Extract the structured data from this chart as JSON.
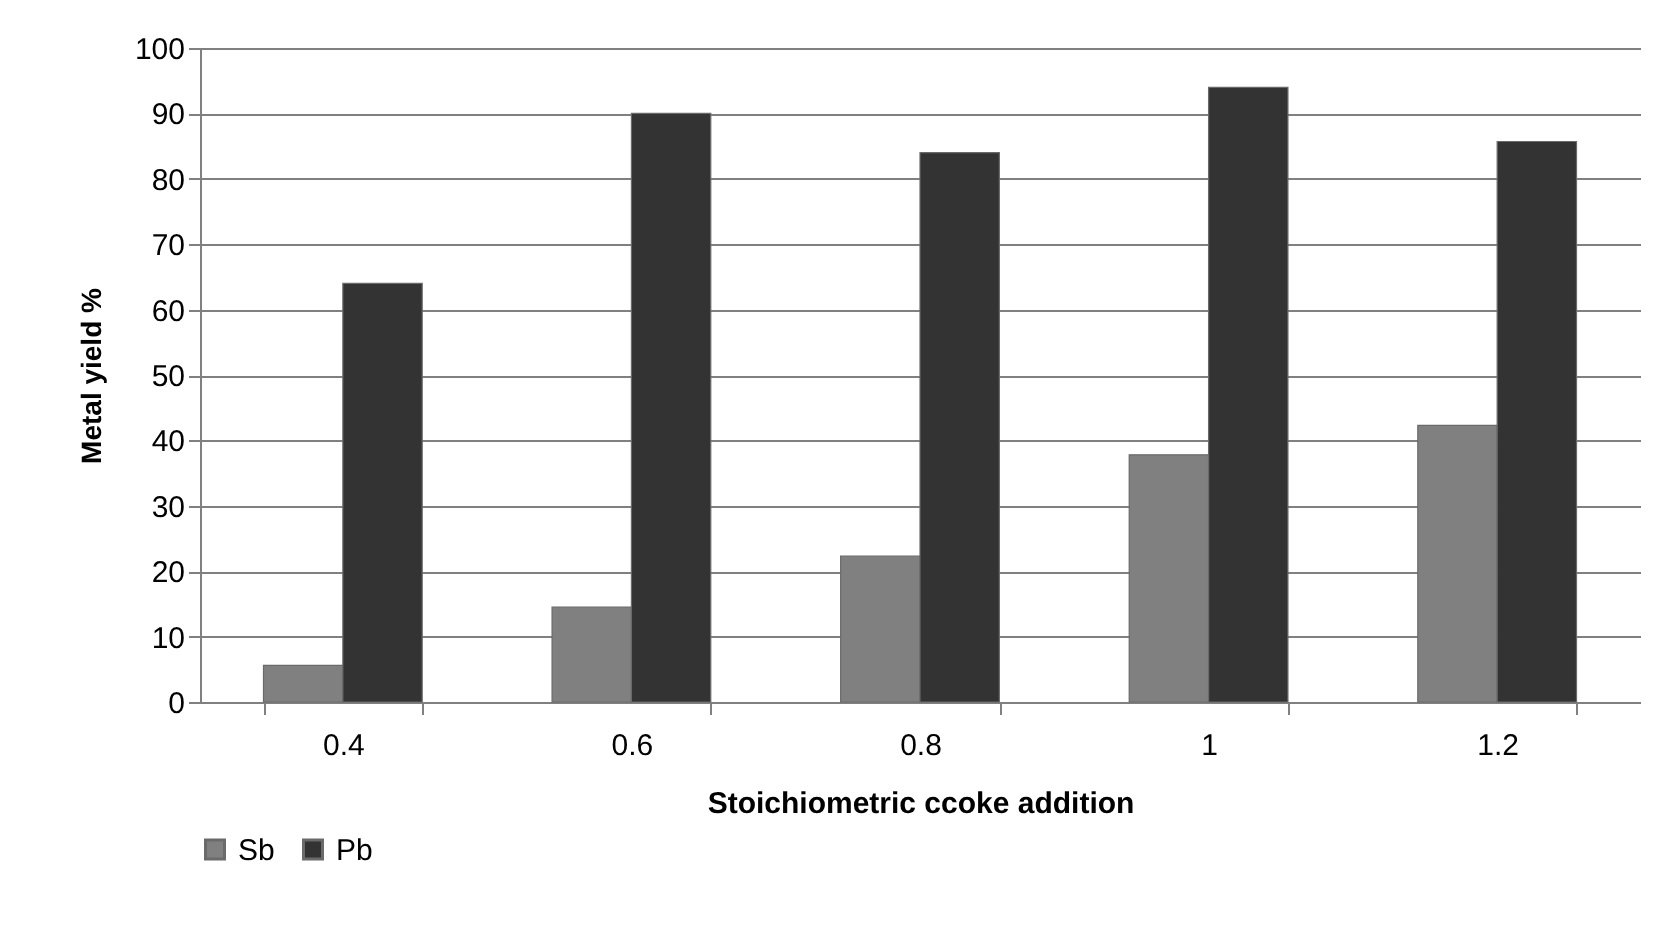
{
  "chart_data": {
    "type": "bar",
    "xlabel": "Stoichiometric ccoke addition",
    "ylabel": "Metal yield %",
    "categories": [
      "0.4",
      "0.6",
      "0.8",
      "1",
      "1.2"
    ],
    "series": [
      {
        "name": "Sb",
        "color": "#808080",
        "values": [
          5.6,
          14.5,
          22.3,
          37.8,
          42.3
        ]
      },
      {
        "name": "Pb",
        "color": "#333333",
        "values": [
          64,
          90,
          84,
          94,
          85.7
        ]
      }
    ],
    "ylim": [
      0,
      100
    ],
    "yticks": [
      0,
      10,
      20,
      30,
      40,
      50,
      60,
      70,
      80,
      90,
      100
    ],
    "grid": "y",
    "legend": "bottom"
  }
}
